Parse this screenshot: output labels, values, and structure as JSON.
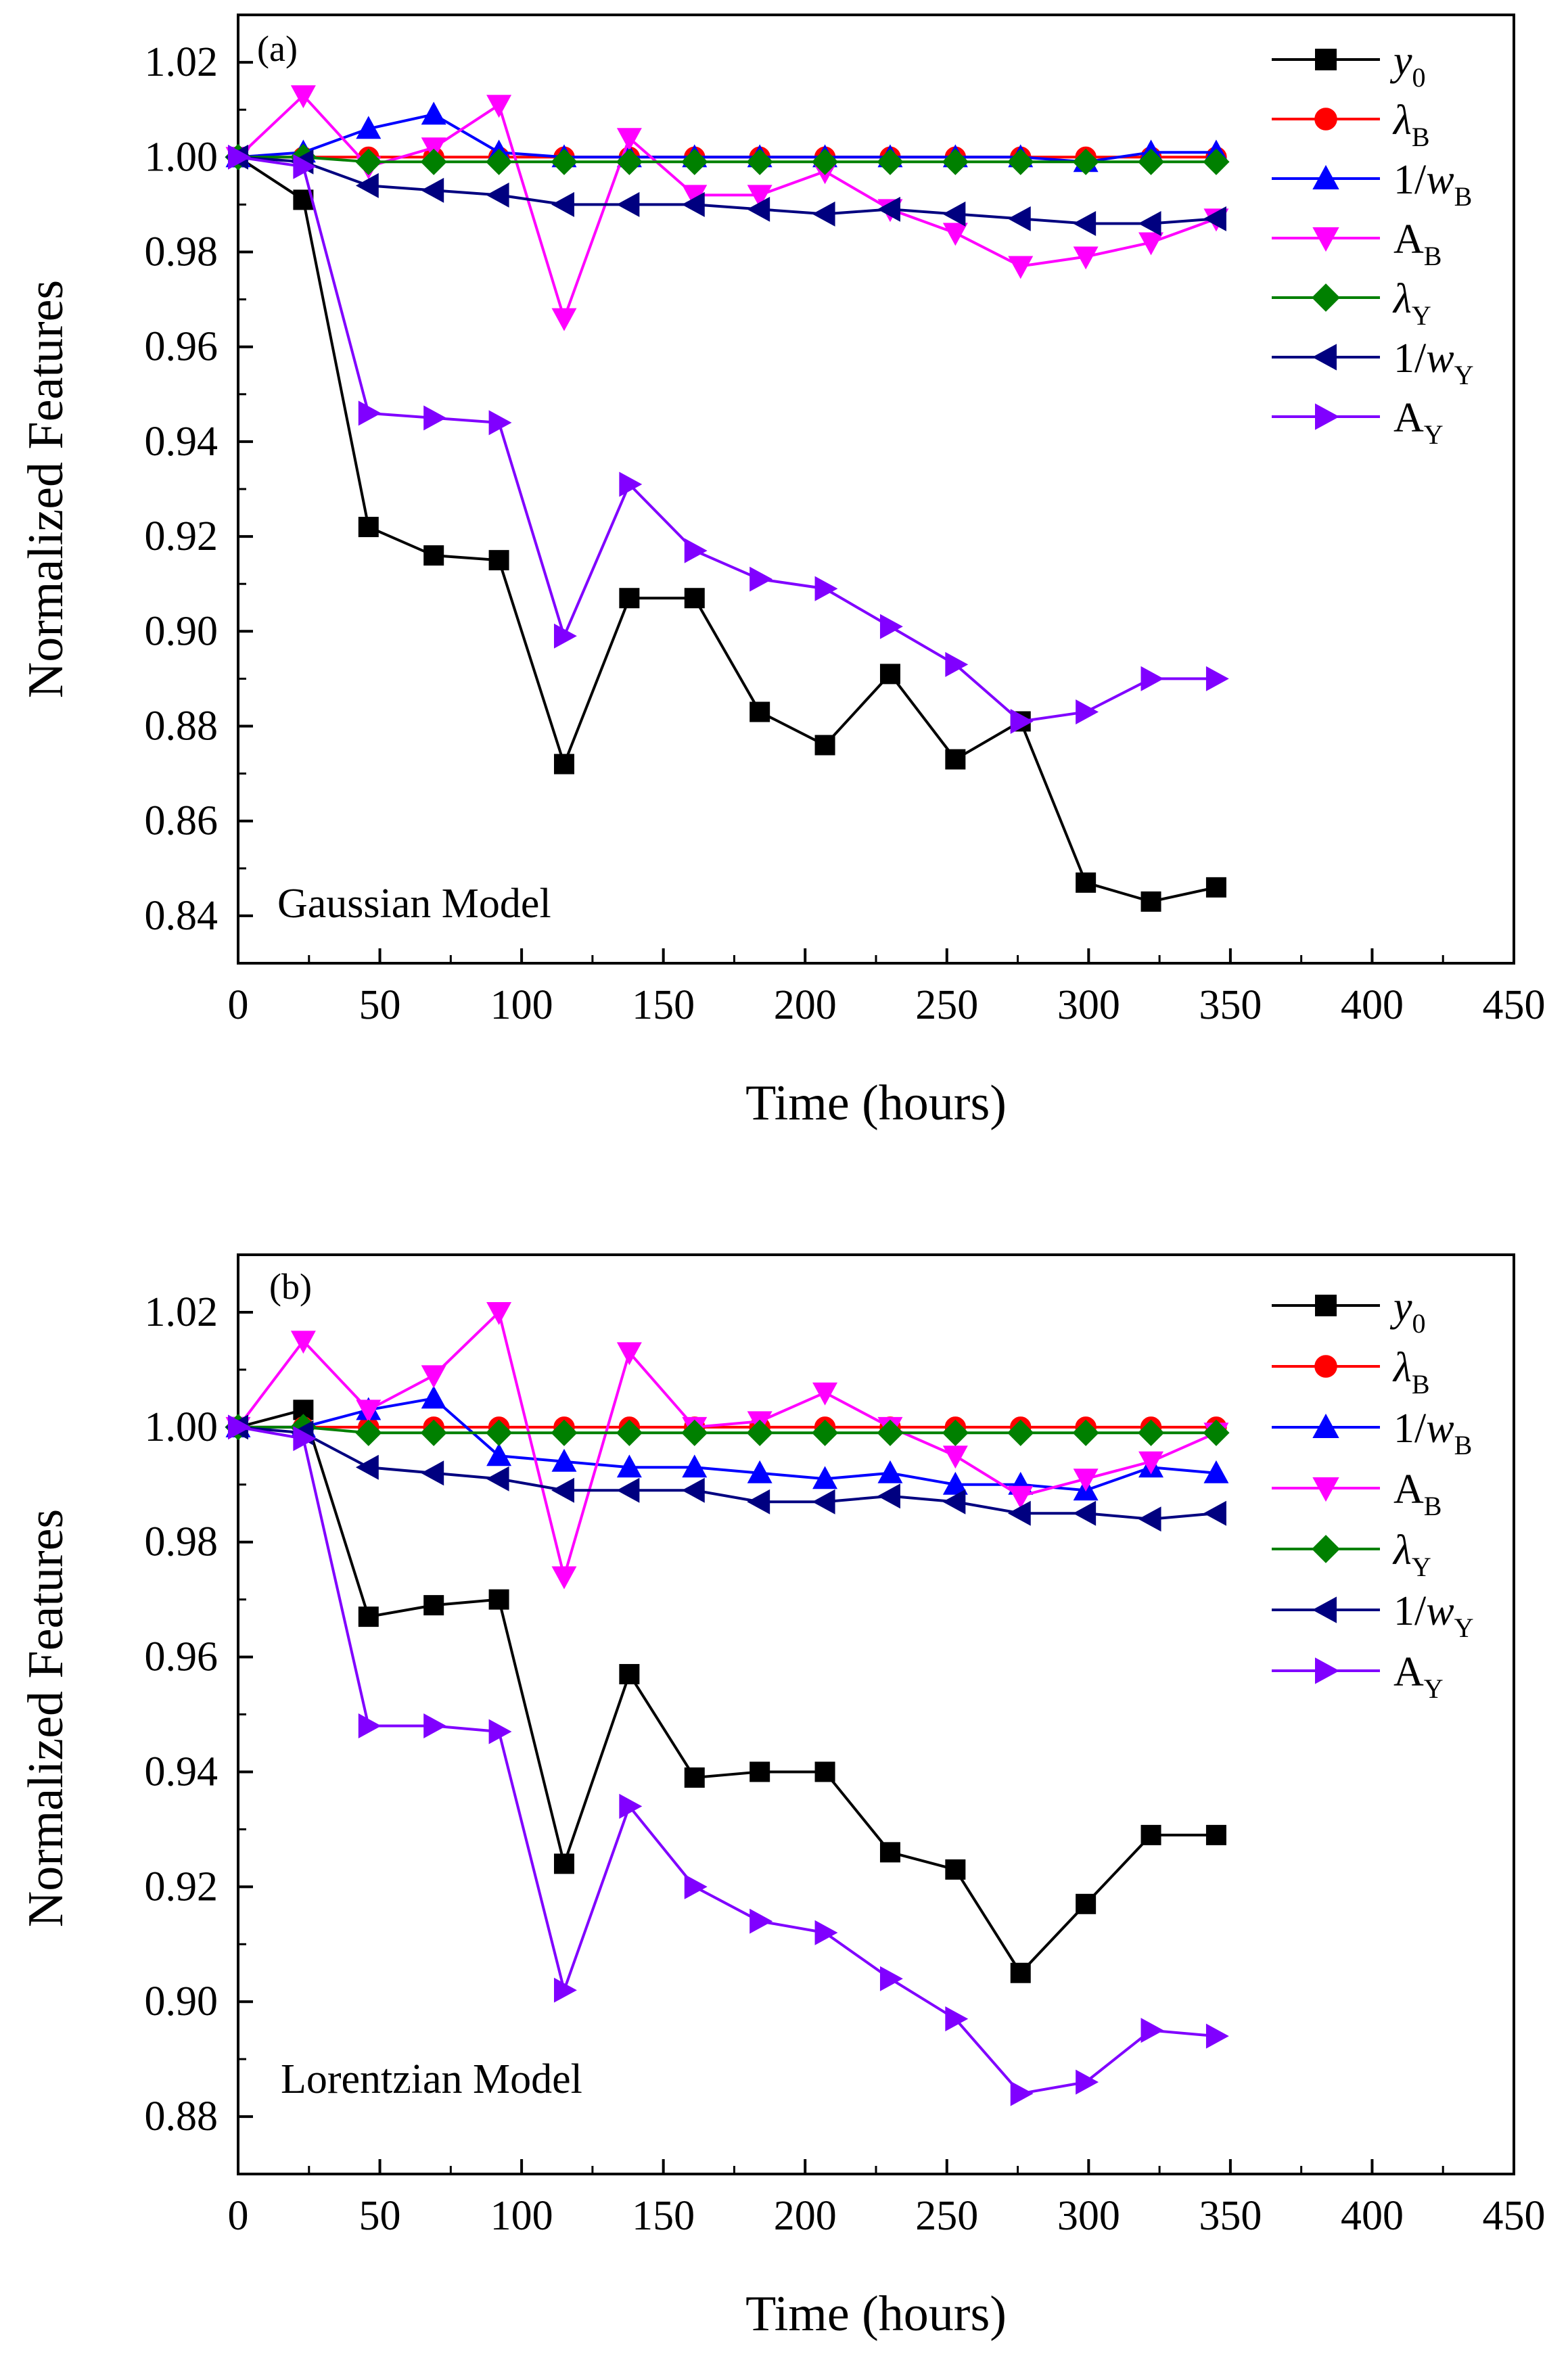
{
  "chart_data": [
    {
      "type": "line",
      "panel_label": "(a)",
      "model_label": "Gaussian Model",
      "xlabel": "Time (hours)",
      "ylabel": "Normalized Features",
      "xlim": [
        0,
        450
      ],
      "ylim": [
        0.83,
        1.03
      ],
      "xticks": [
        "0",
        "50",
        "100",
        "150",
        "200",
        "250",
        "300",
        "350",
        "400",
        "450"
      ],
      "yticks": [
        "0.84",
        "0.86",
        "0.88",
        "0.90",
        "0.92",
        "0.94",
        "0.96",
        "0.98",
        "1.00",
        "1.02"
      ],
      "grid": false,
      "legend_position": "top-right",
      "x": [
        0,
        23,
        46,
        69,
        92,
        115,
        138,
        161,
        184,
        207,
        230,
        253,
        276,
        299,
        322,
        345
      ],
      "series": [
        {
          "name": "y0",
          "color": "#000000",
          "marker": "square",
          "values": [
            1.0,
            0.991,
            0.922,
            0.916,
            0.915,
            0.872,
            0.907,
            0.907,
            0.883,
            0.876,
            0.891,
            0.873,
            0.881,
            0.847,
            0.843,
            0.846
          ]
        },
        {
          "name": "λB",
          "color": "#ff0000",
          "marker": "circle",
          "values": [
            1.0,
            1.0,
            1.0,
            1.0,
            1.0,
            1.0,
            1.0,
            1.0,
            1.0,
            1.0,
            1.0,
            1.0,
            1.0,
            1.0,
            1.0,
            1.0
          ]
        },
        {
          "name": "1/wB",
          "color": "#0000ff",
          "marker": "triangle-up",
          "values": [
            1.0,
            1.001,
            1.006,
            1.009,
            1.001,
            1.0,
            1.0,
            1.0,
            1.0,
            1.0,
            1.0,
            1.0,
            1.0,
            0.999,
            1.001,
            1.001
          ]
        },
        {
          "name": "AB",
          "color": "#ff00ff",
          "marker": "triangle-down",
          "values": [
            1.0,
            1.013,
            0.998,
            1.002,
            1.011,
            0.966,
            1.004,
            0.992,
            0.992,
            0.997,
            0.989,
            0.984,
            0.977,
            0.979,
            0.982,
            0.987
          ]
        },
        {
          "name": "λY",
          "color": "#008000",
          "marker": "diamond",
          "values": [
            1.0,
            1.0,
            0.999,
            0.999,
            0.999,
            0.999,
            0.999,
            0.999,
            0.999,
            0.999,
            0.999,
            0.999,
            0.999,
            0.999,
            0.999,
            0.999
          ]
        },
        {
          "name": "1/wY",
          "color": "#000080",
          "marker": "triangle-left",
          "values": [
            1.0,
            0.999,
            0.994,
            0.993,
            0.992,
            0.99,
            0.99,
            0.99,
            0.989,
            0.988,
            0.989,
            0.988,
            0.987,
            0.986,
            0.986,
            0.987
          ]
        },
        {
          "name": "AY",
          "color": "#8000ff",
          "marker": "triangle-right",
          "values": [
            1.0,
            0.998,
            0.946,
            0.945,
            0.944,
            0.899,
            0.931,
            0.917,
            0.911,
            0.909,
            0.901,
            0.893,
            0.881,
            0.883,
            0.89,
            0.89
          ]
        }
      ]
    },
    {
      "type": "line",
      "panel_label": "(b)",
      "model_label": "Lorentzian Model",
      "xlabel": "Time (hours)",
      "ylabel": "Normalized Features",
      "xlim": [
        0,
        450
      ],
      "ylim": [
        0.87,
        1.03
      ],
      "xticks": [
        "0",
        "50",
        "100",
        "150",
        "200",
        "250",
        "300",
        "350",
        "400",
        "450"
      ],
      "yticks": [
        "0.88",
        "0.90",
        "0.92",
        "0.94",
        "0.96",
        "0.98",
        "1.00",
        "1.02"
      ],
      "grid": false,
      "legend_position": "top-right",
      "x": [
        0,
        23,
        46,
        69,
        92,
        115,
        138,
        161,
        184,
        207,
        230,
        253,
        276,
        299,
        322,
        345
      ],
      "series": [
        {
          "name": "y0",
          "color": "#000000",
          "marker": "square",
          "values": [
            1.0,
            1.003,
            0.967,
            0.969,
            0.97,
            0.924,
            0.957,
            0.939,
            0.94,
            0.94,
            0.926,
            0.923,
            0.905,
            0.917,
            0.929,
            0.929
          ]
        },
        {
          "name": "λB",
          "color": "#ff0000",
          "marker": "circle",
          "values": [
            1.0,
            1.0,
            1.0,
            1.0,
            1.0,
            1.0,
            1.0,
            1.0,
            1.0,
            1.0,
            1.0,
            1.0,
            1.0,
            1.0,
            1.0,
            1.0
          ]
        },
        {
          "name": "1/wB",
          "color": "#0000ff",
          "marker": "triangle-up",
          "values": [
            1.0,
            1.0,
            1.003,
            1.005,
            0.995,
            0.994,
            0.993,
            0.993,
            0.992,
            0.991,
            0.992,
            0.99,
            0.99,
            0.989,
            0.993,
            0.992
          ]
        },
        {
          "name": "AB",
          "color": "#ff00ff",
          "marker": "triangle-down",
          "values": [
            1.0,
            1.015,
            1.003,
            1.009,
            1.02,
            0.974,
            1.013,
            1.0,
            1.001,
            1.006,
            1.0,
            0.995,
            0.988,
            0.991,
            0.994,
            0.999
          ]
        },
        {
          "name": "λY",
          "color": "#008000",
          "marker": "diamond",
          "values": [
            1.0,
            1.0,
            0.999,
            0.999,
            0.999,
            0.999,
            0.999,
            0.999,
            0.999,
            0.999,
            0.999,
            0.999,
            0.999,
            0.999,
            0.999,
            0.999
          ]
        },
        {
          "name": "1/wY",
          "color": "#000080",
          "marker": "triangle-left",
          "values": [
            1.0,
            0.999,
            0.993,
            0.992,
            0.991,
            0.989,
            0.989,
            0.989,
            0.987,
            0.987,
            0.988,
            0.987,
            0.985,
            0.985,
            0.984,
            0.985
          ]
        },
        {
          "name": "AY",
          "color": "#8000ff",
          "marker": "triangle-right",
          "values": [
            1.0,
            0.998,
            0.948,
            0.948,
            0.947,
            0.902,
            0.934,
            0.92,
            0.914,
            0.912,
            0.904,
            0.897,
            0.884,
            0.886,
            0.895,
            0.894
          ]
        }
      ]
    }
  ]
}
